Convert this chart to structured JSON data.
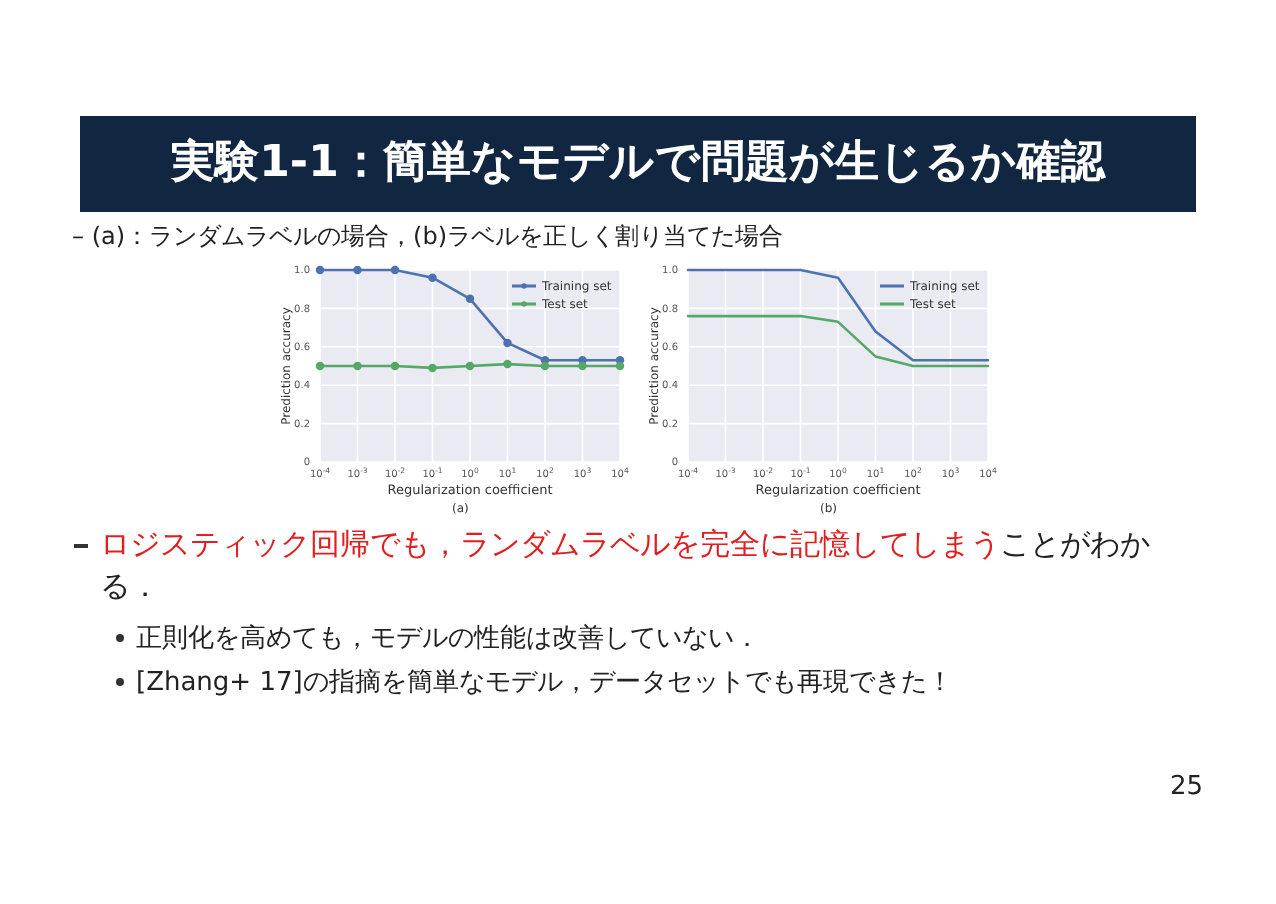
{
  "chart_data": [
    {
      "type": "line",
      "title": "実験1-1：簡単なモデルで問題が生じるか確認",
      "xlabel": "Regularization coefficient",
      "ylabel": "Prediction accuracy",
      "log": "x",
      "x": [
        0.0001,
        0.001,
        0.01,
        0.1,
        1,
        10,
        100,
        1000,
        10000
      ],
      "xlim": [
        0.0001,
        10000
      ],
      "xticks": [
        {
          "value": 0.0001,
          "label": "10$^{-4}$"
        },
        {
          "value": 0.001,
          "label": "10$^{-3}$"
        },
        {
          "value": 0.01,
          "label": "10$^{-2}$"
        },
        {
          "value": 0.1,
          "label": "10$^{-1}$"
        },
        {
          "value": 1,
          "label": "10$^{0}$"
        },
        {
          "value": 10,
          "label": "10$^{1}$"
        },
        {
          "value": 100,
          "label": "10$^{2}$"
        },
        {
          "value": 1000,
          "label": "10$^{3}$"
        },
        {
          "value": 10000,
          "label": "10$^{4}$"
        }
      ],
      "ylim": [
        0,
        1
      ],
      "yticks": [
        {
          "value": 0,
          "label": "0"
        },
        {
          "value": 0.2,
          "label": "0.2"
        },
        {
          "value": 0.4,
          "label": "0.4"
        },
        {
          "value": 0.6,
          "label": "0.6"
        },
        {
          "value": 0.8,
          "label": "0.8"
        },
        {
          "value": 1,
          "label": "1.0"
        }
      ],
      "grid": true,
      "legend": "top right",
      "marker": "circle",
      "series": [
        {
          "name": "Training set",
          "color": "#4c72b0",
          "values": [
            1,
            1,
            1,
            0.96,
            0.85,
            0.62,
            0.53,
            0.53,
            0.53
          ]
        },
        {
          "name": "Test set",
          "color": "#55a868",
          "values": [
            0.5,
            0.5,
            0.5,
            0.49,
            0.5,
            0.51,
            0.5,
            0.5,
            0.5
          ]
        }
      ],
      "annotations": [
        "– (a)：ランダムラベルの場合，(b)ラベルを正しく割り当てた場合",
        "(a)"
      ]
    },
    {
      "type": "line",
      "xlabel": "Regularization coefficient",
      "ylabel": "Prediction accuracy",
      "log": "x",
      "x": [
        0.0001,
        0.001,
        0.01,
        0.1,
        1,
        10,
        100,
        1000,
        10000
      ],
      "xlim": [
        0.0001,
        10000
      ],
      "xticks": [
        {
          "value": 0.0001,
          "label": "10$^{-4}$"
        },
        {
          "value": 0.001,
          "label": "10$^{-3}$"
        },
        {
          "value": 0.01,
          "label": "10$^{-2}$"
        },
        {
          "value": 0.1,
          "label": "10$^{-1}$"
        },
        {
          "value": 1,
          "label": "10$^{0}$"
        },
        {
          "value": 10,
          "label": "10$^{1}$"
        },
        {
          "value": 100,
          "label": "10$^{2}$"
        },
        {
          "value": 1000,
          "label": "10$^{3}$"
        },
        {
          "value": 10000,
          "label": "10$^{4}$"
        }
      ],
      "ylim": [
        0,
        1
      ],
      "yticks": [
        {
          "value": 0,
          "label": "0"
        },
        {
          "value": 0.2,
          "label": "0.2"
        },
        {
          "value": 0.4,
          "label": "0.4"
        },
        {
          "value": 0.6,
          "label": "0.6"
        },
        {
          "value": 0.8,
          "label": "0.8"
        },
        {
          "value": 1,
          "label": "1.0"
        }
      ],
      "grid": true,
      "legend": "top right",
      "marker": "none",
      "series": [
        {
          "name": "Training set",
          "color": "#4c72b0",
          "values": [
            1,
            1,
            1,
            1,
            0.96,
            0.68,
            0.53,
            0.53,
            0.53
          ]
        },
        {
          "name": "Test set",
          "color": "#55a868",
          "values": [
            0.76,
            0.76,
            0.76,
            0.76,
            0.73,
            0.55,
            0.5,
            0.5,
            0.5
          ]
        }
      ],
      "annotations": [
        "(b)",
        "ロジスティック回帰でも，ランダムラベルを完全に記憶してしまう",
        "ことがわかる．",
        "正則化を高めても，モデルの性能は改善していない．",
        "[Zhang+ 17]の指摘を簡単なモデル，データセットでも再現できた！",
        "25"
      ]
    }
  ]
}
